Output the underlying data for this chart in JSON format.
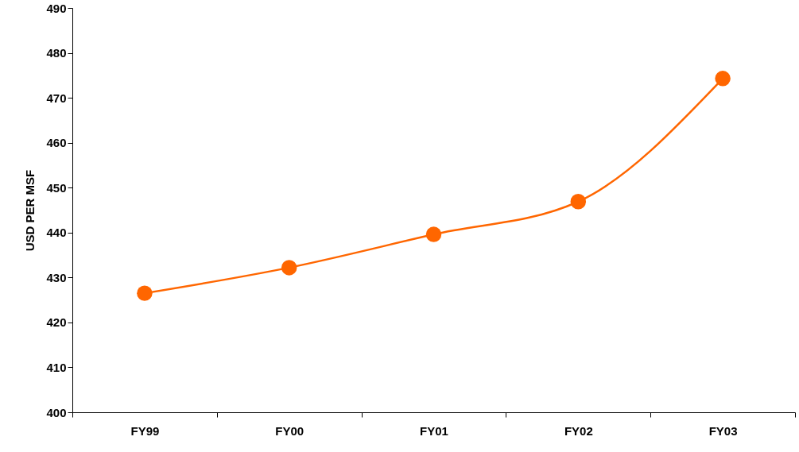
{
  "chart_data": {
    "type": "line",
    "ylabel": "USD PER MSF",
    "categories": [
      "FY99",
      "FY00",
      "FY01",
      "FY02",
      "FY03"
    ],
    "series": [
      {
        "color": "#ff6600",
        "values": [
          426.5,
          432.2,
          439.6,
          446.9,
          474.3
        ]
      }
    ],
    "ylim": [
      400,
      490
    ],
    "yticks": [
      400,
      410,
      420,
      430,
      440,
      450,
      460,
      470,
      480,
      490
    ],
    "marker": "circle",
    "line_style": "solid",
    "grid": false
  }
}
